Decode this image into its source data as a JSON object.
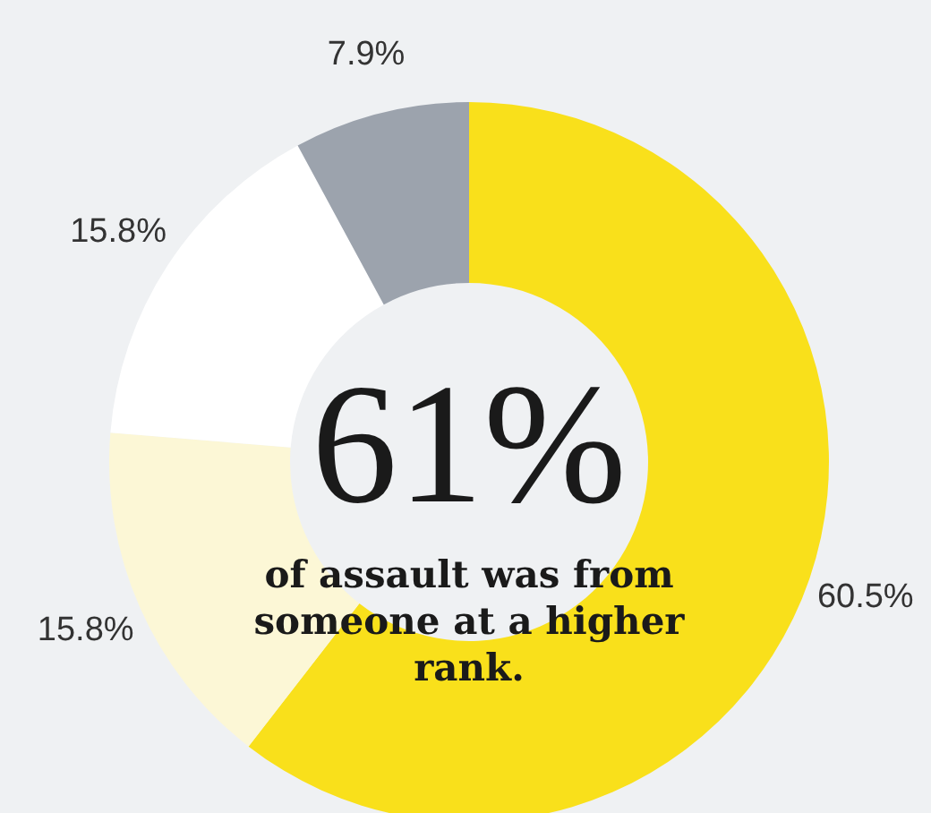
{
  "chart_data": {
    "type": "donut",
    "categories": [
      null,
      null,
      null,
      null
    ],
    "values": [
      60.5,
      15.8,
      15.8,
      7.9
    ],
    "colors": [
      "#f9e01b",
      "#fcf7d6",
      "#ffffff",
      "#9ca3ad"
    ],
    "value_labels": [
      "60.5%",
      "15.8%",
      "15.8%",
      "7.9%"
    ],
    "annotations": [
      "61%",
      "of assault was from someone at a higher rank."
    ]
  }
}
